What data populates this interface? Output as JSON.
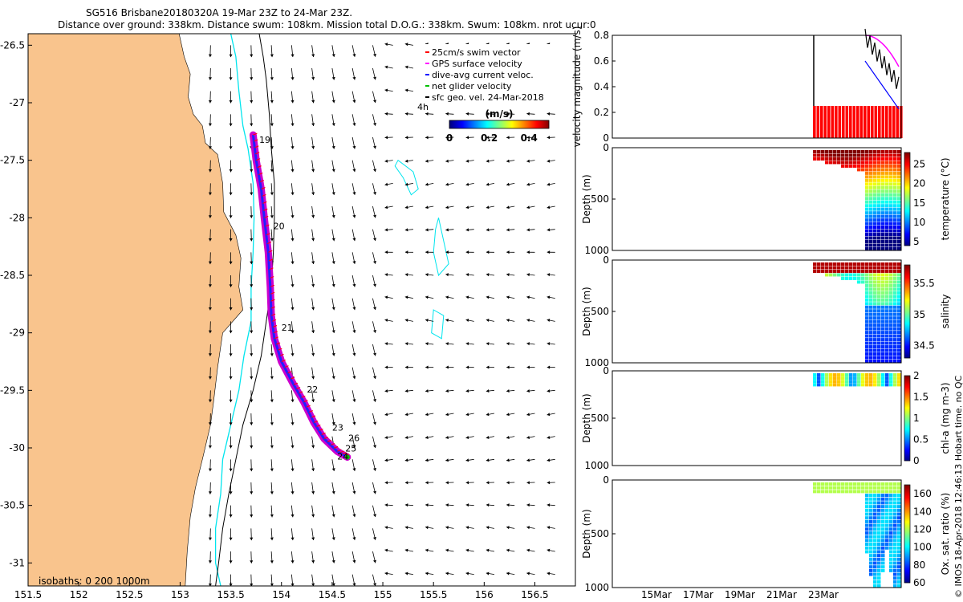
{
  "header": {
    "title": "SG516 Brisbane20180320A 19-Mar 23Z to 24-Mar 23Z.",
    "subtitle": "Distance over ground: 338km. Distance swum: 108km. Mission total D.O.G.: 338km. Swum: 108km. nrot ucur:0"
  },
  "colors": {
    "land": "#f9c48d",
    "isobath_200": "#00e5ee",
    "isobath_1000": "#000000",
    "track": "#cc00cc",
    "swim": "#ff0000"
  },
  "chart_data": [
    {
      "type": "scatter",
      "name": "map",
      "x_ticks": [
        151.5,
        152,
        152.5,
        153,
        153.5,
        154,
        154.5,
        155,
        155.5,
        156,
        156.5
      ],
      "y_ticks": [
        -26.5,
        -27,
        -27.5,
        -28,
        -28.5,
        -29,
        -29.5,
        -30,
        -30.5,
        -31
      ],
      "xlim": [
        151.5,
        156.9
      ],
      "ylim": [
        -31.2,
        -26.4
      ],
      "legend": [
        {
          "label": "25cm/s swim vector",
          "color": "#ff0000"
        },
        {
          "label": "GPS surface velocity",
          "color": "#ff00ff"
        },
        {
          "label": "dive-avg current veloc.",
          "color": "#0000ff"
        },
        {
          "label": "net glider velocity",
          "color": "#00c000"
        },
        {
          "label": "sfc geo. vel. 24-Mar-2018",
          "color": "#000000"
        }
      ],
      "time_label": "4h",
      "colorbar": {
        "label": "(m/s)",
        "ticks": [
          "0",
          "0.2",
          "0.4"
        ],
        "range": [
          0,
          0.5
        ]
      },
      "isobath_label": "isobaths: 0   200  1000m",
      "day_labels": [
        {
          "text": "19",
          "lon": 153.78,
          "lat": -27.35
        },
        {
          "text": "20",
          "lon": 153.92,
          "lat": -28.1
        },
        {
          "text": "21",
          "lon": 154.0,
          "lat": -28.98
        },
        {
          "text": "22",
          "lon": 154.25,
          "lat": -29.52
        },
        {
          "text": "23",
          "lon": 154.5,
          "lat": -29.85
        },
        {
          "text": "26",
          "lon": 154.66,
          "lat": -29.94
        },
        {
          "text": "25",
          "lon": 154.63,
          "lat": -30.03
        },
        {
          "text": "24",
          "lon": 154.55,
          "lat": -30.1
        }
      ],
      "track": [
        [
          153.72,
          -27.28
        ],
        [
          153.75,
          -27.5
        ],
        [
          153.8,
          -27.75
        ],
        [
          153.83,
          -28.0
        ],
        [
          153.87,
          -28.3
        ],
        [
          153.89,
          -28.6
        ],
        [
          153.9,
          -28.85
        ],
        [
          153.93,
          -29.05
        ],
        [
          154.0,
          -29.25
        ],
        [
          154.12,
          -29.45
        ],
        [
          154.22,
          -29.6
        ],
        [
          154.32,
          -29.78
        ],
        [
          154.42,
          -29.92
        ],
        [
          154.55,
          -30.03
        ],
        [
          154.65,
          -30.08
        ]
      ]
    },
    {
      "type": "line",
      "name": "velocity",
      "ylabel": "velocity magnitude (m/s)",
      "ylim": [
        0,
        0.8
      ],
      "y_ticks": [
        "0",
        "0.2",
        "0.4",
        "0.6",
        "0.8"
      ],
      "swim_speed": 0.25
    },
    {
      "type": "heatmap",
      "name": "temperature",
      "ylabel": "Depth (m)",
      "y_ticks": [
        "0",
        "500",
        "1000"
      ],
      "colorbar_label": "temperature (°C)",
      "colorbar_ticks": [
        "25",
        "20",
        "15",
        "10",
        "5"
      ],
      "range": [
        4,
        28
      ]
    },
    {
      "type": "heatmap",
      "name": "salinity",
      "ylabel": "Depth (m)",
      "y_ticks": [
        "0",
        "500",
        "1000"
      ],
      "colorbar_label": "salinity",
      "colorbar_ticks": [
        "35.5",
        "35",
        "34.5"
      ],
      "range": [
        34.3,
        35.8
      ]
    },
    {
      "type": "heatmap",
      "name": "chla",
      "ylabel": "Depth (m)",
      "y_ticks": [
        "0",
        "500",
        "1000"
      ],
      "colorbar_label": "chl-a (mg m-3)",
      "colorbar_ticks": [
        "2",
        "1.5",
        "1",
        "0.5",
        "0"
      ],
      "range": [
        0,
        2
      ]
    },
    {
      "type": "heatmap",
      "name": "oxygen",
      "ylabel": "Depth (m)",
      "y_ticks": [
        "0",
        "500",
        "1000"
      ],
      "colorbar_label": "Ox. sat. ratio (%)",
      "colorbar_ticks": [
        "160",
        "140",
        "120",
        "100",
        "80",
        "60"
      ],
      "range": [
        60,
        170
      ]
    }
  ],
  "time_axis": {
    "ticks": [
      "15Mar",
      "17Mar",
      "19Mar",
      "21Mar",
      "23Mar"
    ]
  },
  "credit": "© IMOS 18-Apr-2018 12:46:13 Hobart time. no QC"
}
